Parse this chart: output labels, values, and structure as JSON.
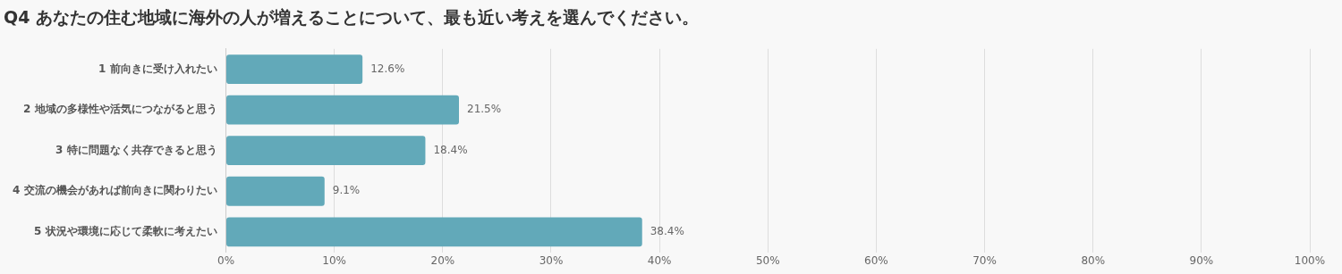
{
  "chart_data": {
    "type": "bar",
    "orientation": "horizontal",
    "title": "Q4 あなたの住む地域に海外の人が増えることについて、最も近い考えを選んでください。",
    "categories": [
      "1 前向きに受け入れたい",
      "2 地域の多様性や活気につながると思う",
      "3 特に問題なく共存できると思う",
      "4 交流の機会があれば前向きに関わりたい",
      "5 状況や環境に応じて柔軟に考えたい"
    ],
    "values": [
      12.6,
      21.5,
      18.4,
      9.1,
      38.4
    ],
    "value_labels": [
      "12.6%",
      "21.5%",
      "18.4%",
      "9.1%",
      "38.4%"
    ],
    "color": "#62a9b9",
    "xlim": [
      0,
      100
    ],
    "xticks": [
      {
        "value": 0,
        "label": "0%"
      },
      {
        "value": 10,
        "label": "10%"
      },
      {
        "value": 20,
        "label": "20%"
      },
      {
        "value": 30,
        "label": "30%"
      },
      {
        "value": 40,
        "label": "40%"
      },
      {
        "value": 50,
        "label": "50%"
      },
      {
        "value": 60,
        "label": "60%"
      },
      {
        "value": 70,
        "label": "70%"
      },
      {
        "value": 80,
        "label": "80%"
      },
      {
        "value": 90,
        "label": "90%"
      },
      {
        "value": 100,
        "label": "100%"
      }
    ],
    "grid": "x",
    "legend": false
  }
}
